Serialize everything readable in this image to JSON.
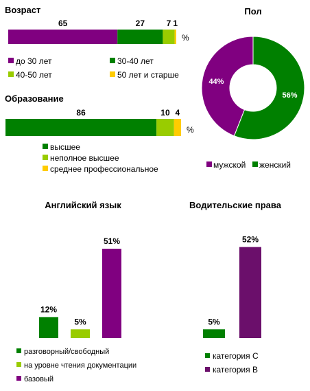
{
  "colors": {
    "purple": "#800080",
    "dark_purple": "#6b0f6b",
    "green": "#008000",
    "lightgreen": "#99cc00",
    "yellow": "#ffcc00"
  },
  "chart_data": [
    {
      "id": "age",
      "type": "bar",
      "stacked": true,
      "orientation": "horizontal",
      "title": "Возраст",
      "unit": "%",
      "series": [
        {
          "name": "до 30 лет",
          "value": 65,
          "color": "#800080"
        },
        {
          "name": "30-40  лет",
          "value": 27,
          "color": "#008000"
        },
        {
          "name": "40-50  лет",
          "value": 7,
          "color": "#99cc00"
        },
        {
          "name": "50 лет  и старше",
          "value": 1,
          "color": "#ffcc00"
        }
      ]
    },
    {
      "id": "education",
      "type": "bar",
      "stacked": true,
      "orientation": "horizontal",
      "title": "Образование",
      "unit": "%",
      "series": [
        {
          "name": "высшее",
          "value": 86,
          "color": "#008000"
        },
        {
          "name": "неполное высшее",
          "value": 10,
          "color": "#99cc00"
        },
        {
          "name": "среднее профессиональное",
          "value": 4,
          "color": "#ffcc00"
        }
      ]
    },
    {
      "id": "gender",
      "type": "pie",
      "donut": true,
      "title": "Пол",
      "slices": [
        {
          "name": "мужской",
          "value": 44,
          "label": "44%",
          "color": "#800080"
        },
        {
          "name": "женский",
          "value": 56,
          "label": "56%",
          "color": "#008000"
        }
      ]
    },
    {
      "id": "english",
      "type": "bar",
      "title": "Английский язык",
      "categories": [
        "разговорный/свободный",
        "на уровне чтения документации",
        "базовый"
      ],
      "values": [
        12,
        5,
        51
      ],
      "labels": [
        "12%",
        "5%",
        "51%"
      ],
      "colors": [
        "#008000",
        "#99cc00",
        "#800080"
      ]
    },
    {
      "id": "license",
      "type": "bar",
      "title": "Водительские права",
      "categories": [
        "категория  С",
        "категория  В"
      ],
      "values": [
        5,
        52
      ],
      "labels": [
        "5%",
        "52%"
      ],
      "colors": [
        "#008000",
        "#6b0f6b"
      ]
    }
  ]
}
